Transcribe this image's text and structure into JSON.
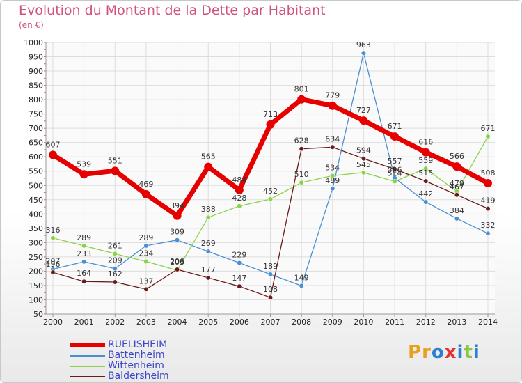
{
  "title": "Evolution du Montant de la Dette par Habitant",
  "subtitle": "(en €)",
  "logo": "Proxiti",
  "chart_data": {
    "type": "line",
    "ylim": [
      50,
      1000
    ],
    "yticks": [
      50,
      100,
      150,
      200,
      250,
      300,
      350,
      400,
      450,
      500,
      550,
      600,
      650,
      700,
      750,
      800,
      850,
      900,
      950,
      1000
    ],
    "categories": [
      "2000",
      "2001",
      "2002",
      "2003",
      "2004",
      "2005",
      "2006",
      "2007",
      "2008",
      "2009",
      "2010",
      "2011",
      "2012",
      "2013",
      "2014"
    ],
    "grid": true,
    "legend_placement": "bottom-left",
    "series": [
      {
        "name": "RUELISHEIM",
        "color": "#e60000",
        "values": [
          607,
          539,
          551,
          469,
          394,
          565,
          484,
          713,
          801,
          779,
          727,
          671,
          616,
          566,
          508
        ]
      },
      {
        "name": "Battenheim",
        "color": "#4a8fd2",
        "values": [
          207,
          233,
          209,
          289,
          309,
          269,
          229,
          189,
          149,
          489,
          963,
          526,
          442,
          384,
          332
        ]
      },
      {
        "name": "Wittenheim",
        "color": "#8bd24a",
        "values": [
          316,
          289,
          261,
          234,
          203,
          388,
          428,
          452,
          510,
          534,
          545,
          514,
          559,
          479,
          671
        ]
      },
      {
        "name": "Baldersheim",
        "color": "#6b1a1a",
        "values": [
          196,
          164,
          162,
          137,
          206,
          177,
          147,
          108,
          628,
          634,
          594,
          557,
          515,
          467,
          419
        ]
      }
    ]
  }
}
